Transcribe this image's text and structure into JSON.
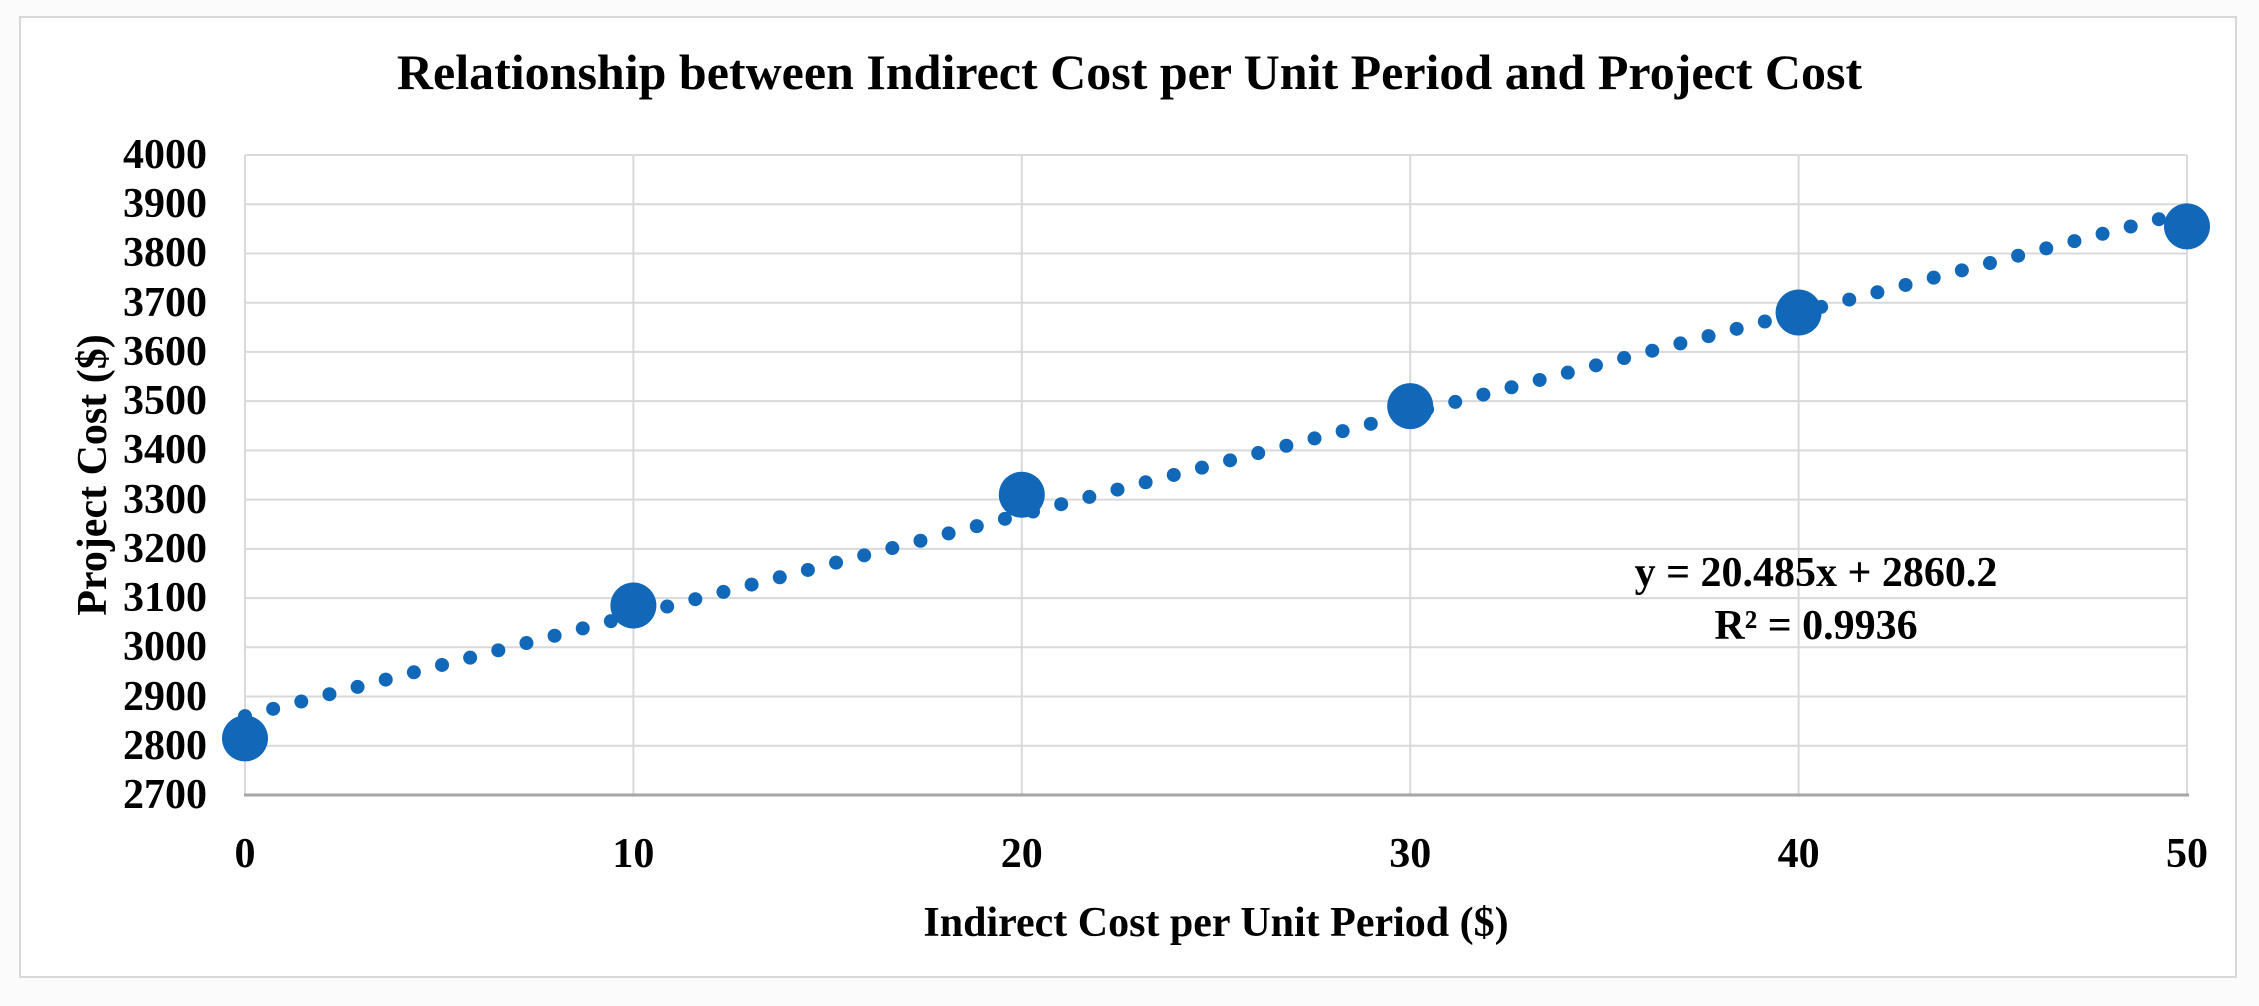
{
  "chart_data": {
    "type": "scatter",
    "title": "Relationship between Indirect Cost per Unit Period and Project Cost",
    "xlabel": "Indirect Cost per Unit Period ($)",
    "ylabel": "Project Cost ($)",
    "x": [
      0,
      10,
      20,
      30,
      40,
      50
    ],
    "y": [
      2815,
      3085,
      3310,
      3490,
      3680,
      3855
    ],
    "xlim": [
      0,
      50
    ],
    "ylim": [
      2700,
      4000
    ],
    "x_ticks": [
      0,
      10,
      20,
      30,
      40,
      50
    ],
    "y_ticks": [
      2700,
      2800,
      2900,
      3000,
      3100,
      3200,
      3300,
      3400,
      3500,
      3600,
      3700,
      3800,
      3900,
      4000
    ],
    "grid": true,
    "legend": "none",
    "trendline": {
      "type": "linear",
      "slope": 20.485,
      "intercept": 2860.2,
      "style": "dotted",
      "equation_label": "y = 20.485x + 2860.2",
      "r_squared_label": "R² = 0.9936"
    },
    "colors": {
      "marker": "#1167b8",
      "trendline": "#1167b8",
      "gridline": "#d9d9d9",
      "axis_line": "#a6a6a6",
      "text": "#000000",
      "frame_border": "#d8d8d8",
      "plot_background": "#ffffff"
    }
  }
}
